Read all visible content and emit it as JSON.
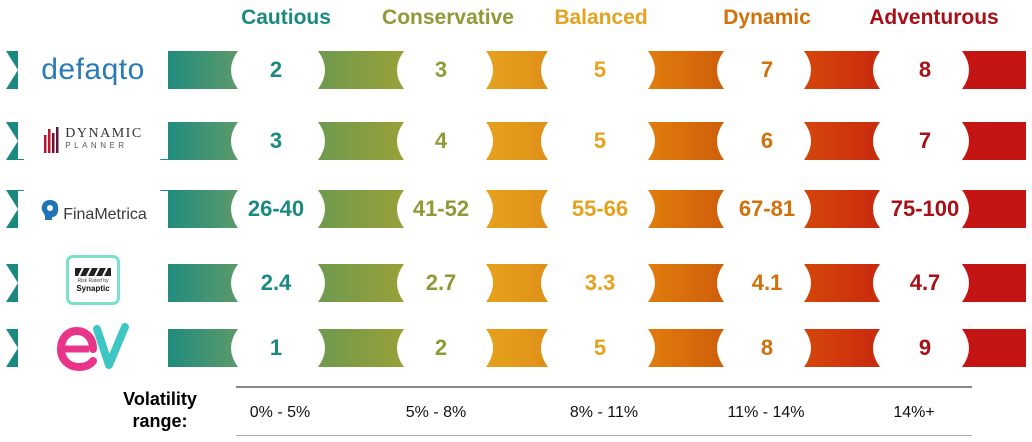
{
  "categories": [
    {
      "label": "Cautious",
      "color": "#1a8a80"
    },
    {
      "label": "Conservative",
      "color": "#8f9a36"
    },
    {
      "label": "Balanced",
      "color": "#e5a21d"
    },
    {
      "label": "Dynamic",
      "color": "#d2700a"
    },
    {
      "label": "Adventurous",
      "color": "#a80f17"
    }
  ],
  "bands": {
    "left_cap": "#1a8a80",
    "segments": [
      {
        "from": "#1a8a80",
        "to": "#5c9a6a"
      },
      {
        "from": "#6e9a4e",
        "to": "#98a038"
      },
      {
        "from": "#e5a21d",
        "to": "#e09018"
      },
      {
        "from": "#e07d0d",
        "to": "#cf5e0a"
      },
      {
        "from": "#d4460a",
        "to": "#c92a0e"
      }
    ],
    "right_cap": "#c41414"
  },
  "providers": [
    {
      "name": "defaqto",
      "logo_icon": "defaqto-wordmark",
      "values": [
        "2",
        "3",
        "5",
        "7",
        "8"
      ]
    },
    {
      "name": "DYNAMIC",
      "subname": "PLANNER",
      "logo_icon": "dynamic-planner-bars",
      "values": [
        "3",
        "4",
        "5",
        "6",
        "7"
      ]
    },
    {
      "name": "FinaMetrica",
      "logo_icon": "finametrica-head",
      "values": [
        "26-40",
        "41-52",
        "55-66",
        "67-81",
        "75-100"
      ]
    },
    {
      "name": "Risk Rated by",
      "subname": "Synaptic",
      "logo_icon": "synaptic-badge",
      "values": [
        "2.4",
        "2.7",
        "3.3",
        "4.1",
        "4.7"
      ]
    },
    {
      "name": "ev",
      "logo_icon": "ev-logo",
      "values": [
        "1",
        "2",
        "5",
        "8",
        "9"
      ]
    }
  ],
  "volatility": {
    "label_line1": "Volatility",
    "label_line2": "range:",
    "ranges": [
      "0% - 5%",
      "5% - 8%",
      "8% - 11%",
      "11% - 14%",
      "14%+"
    ]
  }
}
